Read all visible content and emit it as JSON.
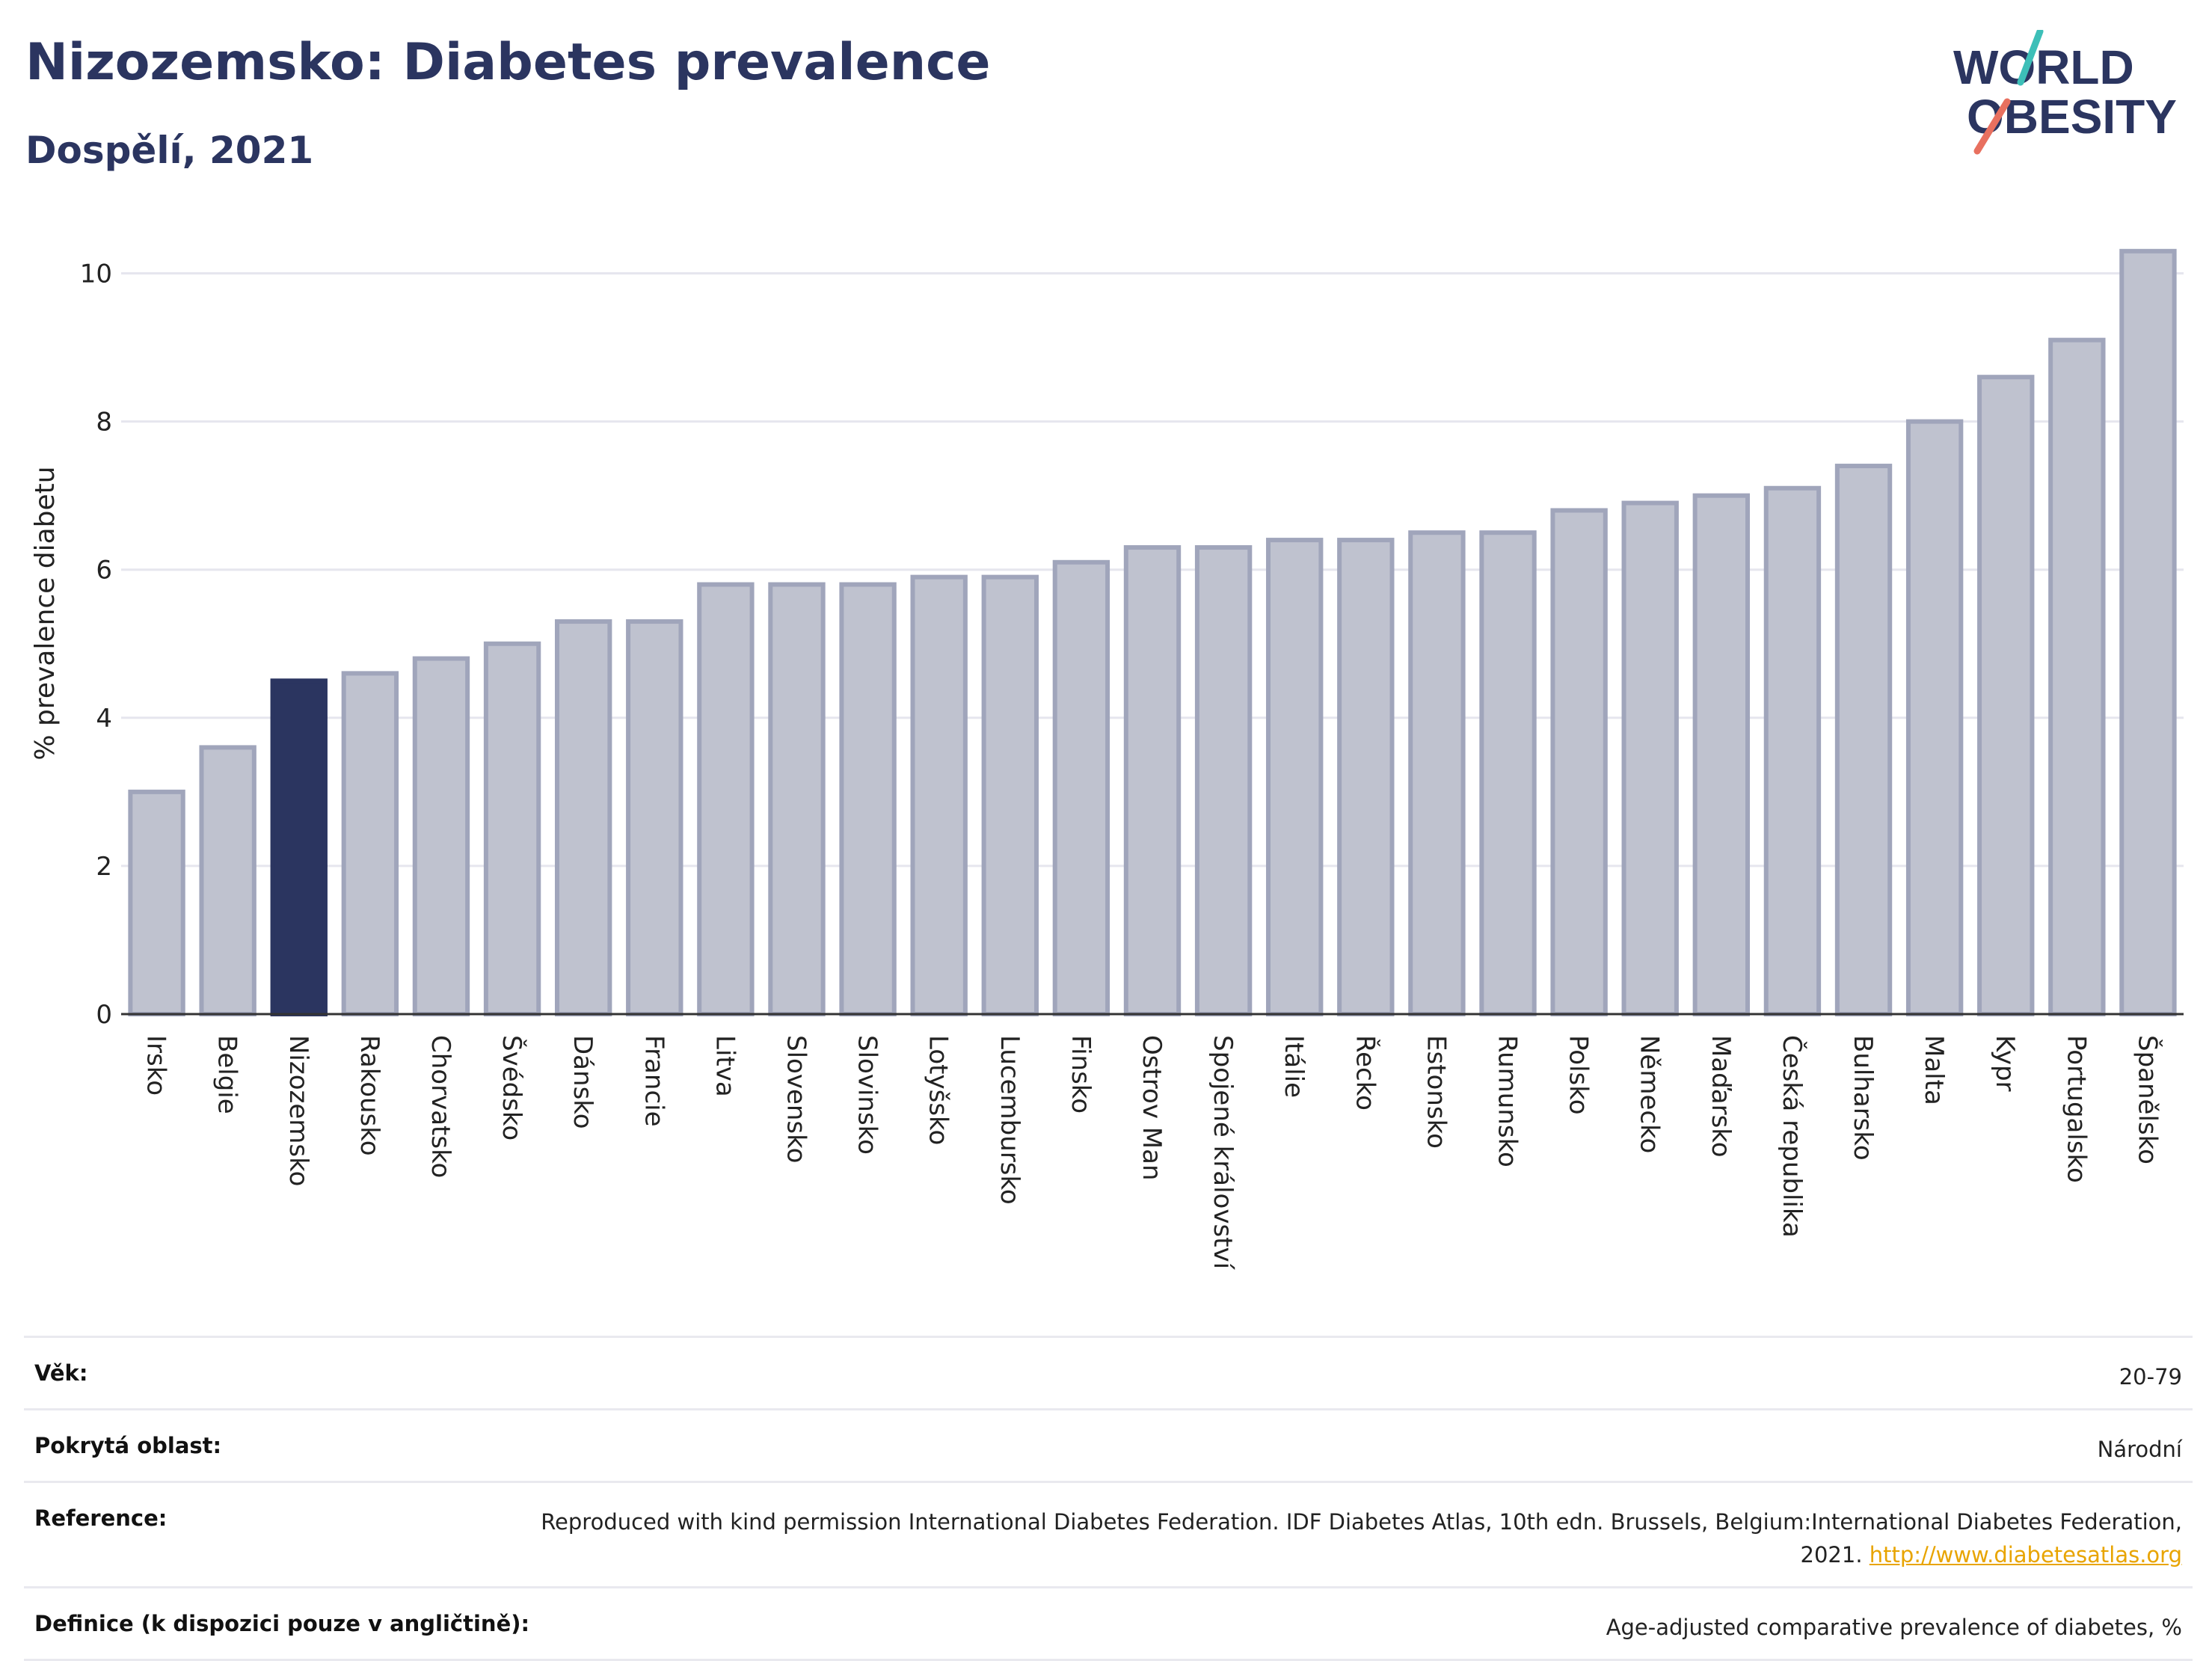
{
  "header": {
    "title": "Nizozemsko: Diabetes prevalence",
    "subtitle": "Dospělí, 2021"
  },
  "logo": {
    "line1": "WORLD",
    "line2": "OBESITY"
  },
  "chart_data": {
    "type": "bar",
    "ylabel": "% prevalence diabetu",
    "ylim": [
      0,
      10.5
    ],
    "yticks": [
      0,
      2,
      4,
      6,
      8,
      10
    ],
    "grid": true,
    "highlight": "Nizozemsko",
    "colors": {
      "highlight": "#2b3560",
      "bar_fill": "#bfc2cf",
      "bar_stroke": "#a0a5bb",
      "grid": "#e6e6ee",
      "axis": "#333333"
    },
    "categories": [
      "Irsko",
      "Belgie",
      "Nizozemsko",
      "Rakousko",
      "Chorvatsko",
      "Švédsko",
      "Dánsko",
      "Francie",
      "Litva",
      "Slovensko",
      "Slovinsko",
      "Lotyšsko",
      "Lucembursko",
      "Finsko",
      "Ostrov Man",
      "Spojené království",
      "Itálie",
      "Řecko",
      "Estonsko",
      "Rumunsko",
      "Polsko",
      "Německo",
      "Maďarsko",
      "Česká republika",
      "Bulharsko",
      "Malta",
      "Kypr",
      "Portugalsko",
      "Španělsko"
    ],
    "values": [
      3.0,
      3.6,
      4.5,
      4.6,
      4.8,
      5.0,
      5.3,
      5.3,
      5.8,
      5.8,
      5.8,
      5.9,
      5.9,
      6.1,
      6.3,
      6.3,
      6.4,
      6.4,
      6.5,
      6.5,
      6.8,
      6.9,
      7.0,
      7.1,
      7.4,
      8.0,
      8.6,
      9.1,
      10.3
    ]
  },
  "meta": [
    {
      "key": "Věk:",
      "value": "20-79"
    },
    {
      "key": "Pokrytá oblast:",
      "value": "Národní"
    },
    {
      "key": "Reference:",
      "value": "Reproduced with kind permission International Diabetes Federation.  IDF Diabetes Atlas, 10th edn. Brussels, Belgium:International Diabetes Federation, 2021. ",
      "link": "http://www.diabetesatlas.org"
    },
    {
      "key": "Definice (k dispozici pouze v angličtině):",
      "value": "Age-adjusted comparative prevalence of diabetes, %"
    }
  ]
}
